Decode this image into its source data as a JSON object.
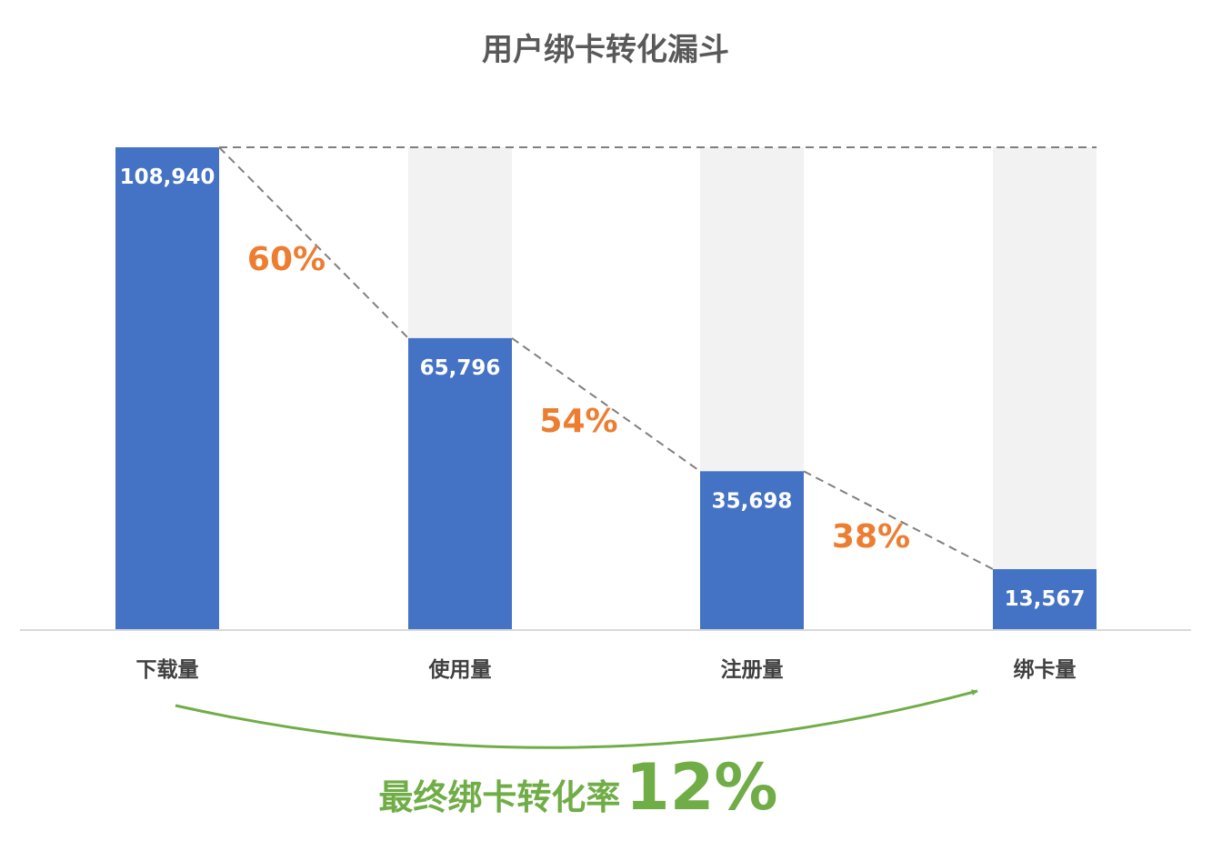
{
  "chart_data": {
    "type": "bar",
    "title": "用户绑卡转化漏斗",
    "categories": [
      "下载量",
      "使用量",
      "注册量",
      "绑卡量"
    ],
    "values": [
      108940,
      65796,
      35698,
      13567
    ],
    "value_labels": [
      "108,940",
      "65,796",
      "35,698",
      "13,567"
    ],
    "step_rates": [
      "60%",
      "54%",
      "38%"
    ],
    "final_label": "最终绑卡转化率",
    "final_rate": "12%",
    "ylim": [
      0,
      108940
    ],
    "grid": false,
    "legend": "none"
  },
  "colors": {
    "bar": "#4472C4",
    "bar_background": "#F2F2F2",
    "rate_text": "#ED7D31",
    "final_accent": "#70AD47",
    "title_text": "#595959",
    "category_text": "#404040",
    "axis_line": "#D9D9D9",
    "dashed_line": "#7F7F7F"
  }
}
